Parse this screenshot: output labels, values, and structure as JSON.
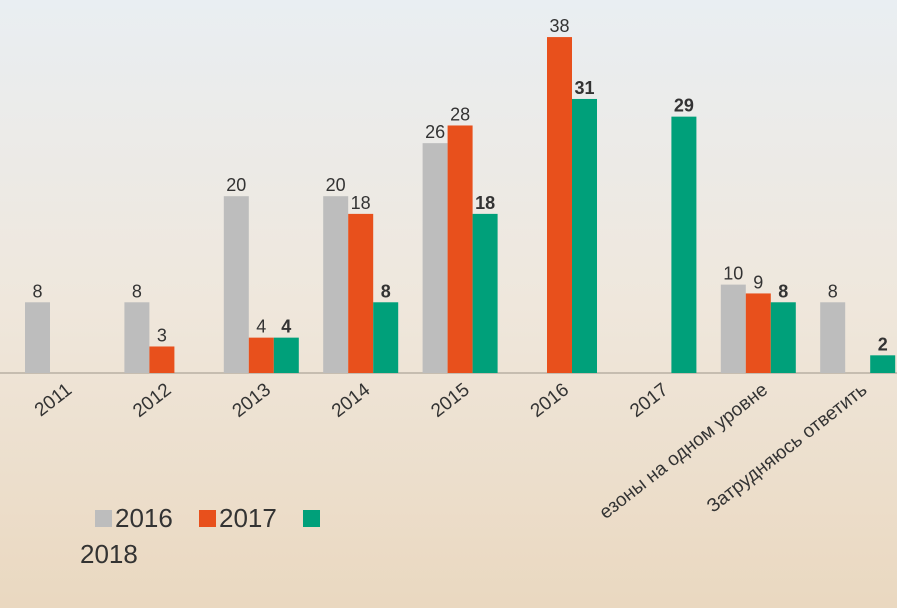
{
  "chart_data": {
    "type": "bar",
    "categories": [
      "2011",
      "2012",
      "2013",
      "2014",
      "2015",
      "2016",
      "2017",
      "езоны на одном уровне",
      "Затрудняюсь ответить"
    ],
    "series": [
      {
        "name": "2016",
        "color": "#bdbdbd",
        "values": [
          8,
          8,
          20,
          20,
          26,
          null,
          null,
          10,
          8
        ]
      },
      {
        "name": "2017",
        "color": "#e8501c",
        "values": [
          null,
          3,
          4,
          18,
          28,
          38,
          null,
          9,
          null
        ]
      },
      {
        "name": "2018",
        "color": "#00a07a",
        "values": [
          null,
          null,
          4,
          8,
          18,
          31,
          29,
          8,
          2
        ]
      }
    ]
  }
}
